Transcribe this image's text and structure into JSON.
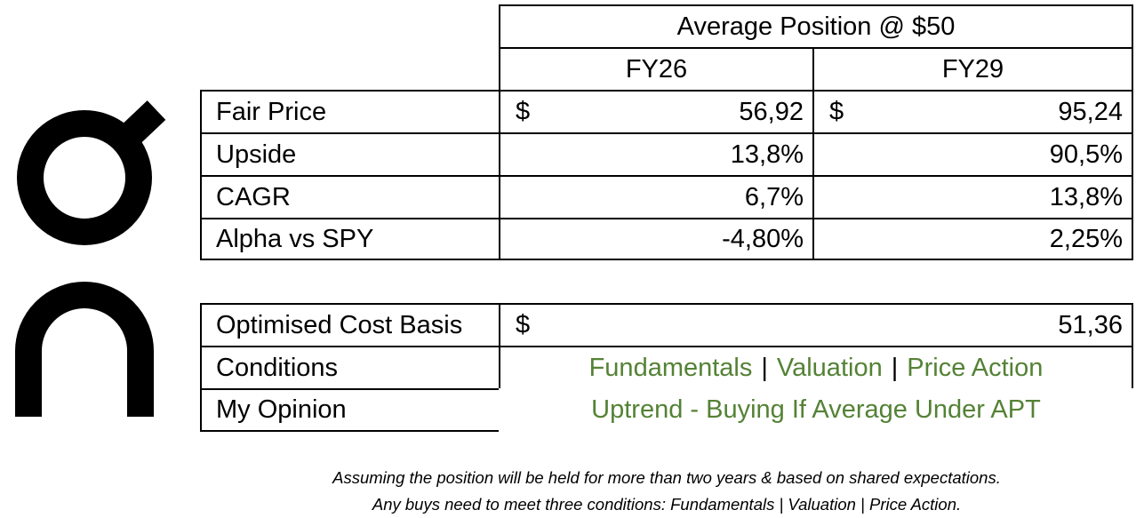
{
  "header": {
    "title": "Average Position @ $50",
    "col1": "FY26",
    "col2": "FY29"
  },
  "valuation_rows": [
    {
      "label": "Fair Price",
      "currency": "$",
      "fy26": "56,92",
      "fy29": "95,24"
    },
    {
      "label": "Upside",
      "fy26": "13,8%",
      "fy29": "90,5%"
    },
    {
      "label": "CAGR",
      "fy26": "6,7%",
      "fy29": "13,8%"
    },
    {
      "label": "Alpha vs SPY",
      "fy26": "-4,80%",
      "fy29": "2,25%"
    }
  ],
  "summary": {
    "cost_basis": {
      "label": "Optimised Cost Basis",
      "currency": "$",
      "value": "51,36"
    },
    "conditions": {
      "label": "Conditions",
      "items": [
        "Fundamentals",
        "Valuation",
        "Price Action"
      ],
      "separator": "|"
    },
    "opinion": {
      "label": "My Opinion",
      "value": "Uptrend - Buying If Average Under APT"
    }
  },
  "notes": {
    "line1": "Assuming the position will be held for more than two years & based on shared expectations.",
    "line2": "Any buys need to meet three conditions: Fundamentals | Valuation | Price Action."
  },
  "colors": {
    "accent_green": "#548235",
    "border": "#000000"
  },
  "logo": {
    "icon": "brand-logo-icon"
  }
}
